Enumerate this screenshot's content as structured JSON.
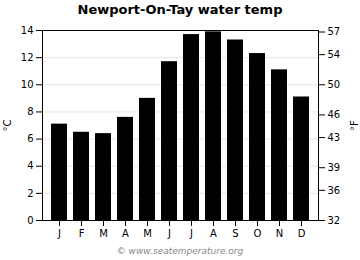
{
  "chart_data": {
    "type": "bar",
    "title": "Newport-On-Tay water temp",
    "categories": [
      "J",
      "F",
      "M",
      "A",
      "M",
      "J",
      "J",
      "A",
      "S",
      "O",
      "N",
      "D"
    ],
    "values": [
      7.1,
      6.5,
      6.4,
      7.6,
      9.0,
      11.7,
      13.7,
      13.9,
      13.3,
      12.3,
      11.1,
      9.1
    ],
    "ylabel": "°C",
    "y2label": "°F",
    "ylim": [
      0,
      14
    ],
    "yticks": [
      0,
      2,
      4,
      6,
      8,
      10,
      12,
      14
    ],
    "y2lim": [
      32,
      57.2
    ],
    "y2ticks": [
      32,
      36,
      39,
      43,
      46,
      50,
      54,
      57
    ],
    "grid": true,
    "annotations": [
      "© www.seatemperature.org"
    ]
  }
}
